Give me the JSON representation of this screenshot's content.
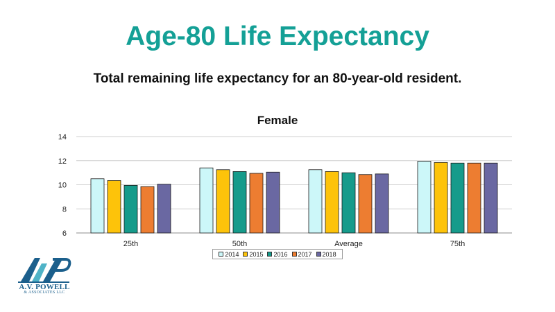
{
  "slide": {
    "title": "Age-80 Life Expectancy",
    "subtitle": "Total remaining life expectancy for an 80-year-old resident."
  },
  "logo": {
    "icon": "avp-logo-icon",
    "name": "A.V. POWELL",
    "tagline": "& ASSOCIATES LLC",
    "colors": {
      "dark": "#1b5f8c",
      "light": "#4fb3c7"
    }
  },
  "chart_data": {
    "type": "bar",
    "title": "Female",
    "xlabel": "",
    "ylabel": "",
    "categories": [
      "25th",
      "50th",
      "Average",
      "75th"
    ],
    "ylim": [
      6,
      14
    ],
    "yticks": [
      6,
      8,
      10,
      12,
      14
    ],
    "grid": true,
    "legend_position": "bottom",
    "series": [
      {
        "name": "2014",
        "color": "#ccf7f9",
        "values": [
          10.5,
          11.4,
          11.25,
          11.95
        ]
      },
      {
        "name": "2015",
        "color": "#fdc30a",
        "values": [
          10.35,
          11.25,
          11.1,
          11.85
        ]
      },
      {
        "name": "2016",
        "color": "#169b8b",
        "values": [
          9.95,
          11.1,
          11.0,
          11.8
        ]
      },
      {
        "name": "2017",
        "color": "#ed7d31",
        "values": [
          9.85,
          10.95,
          10.85,
          11.8
        ]
      },
      {
        "name": "2018",
        "color": "#6a68a2",
        "values": [
          10.05,
          11.05,
          10.9,
          11.8
        ]
      }
    ]
  }
}
